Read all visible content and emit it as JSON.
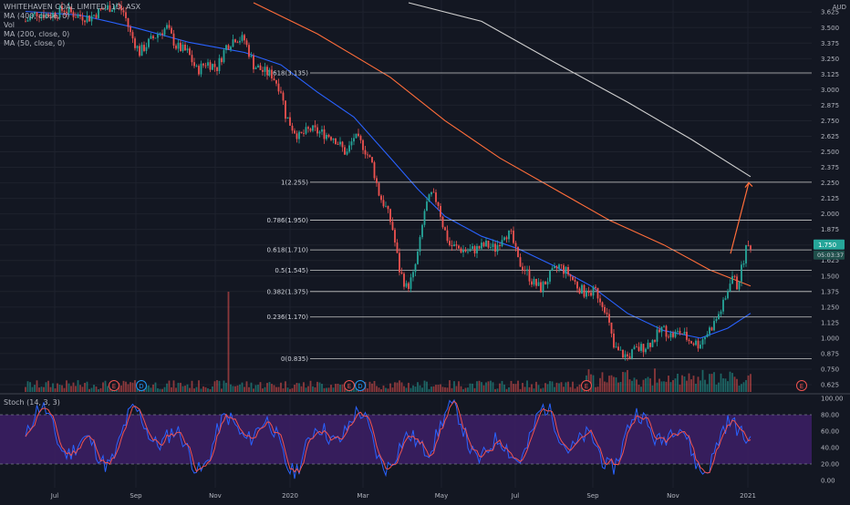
{
  "chart_data": {
    "type": "candlestick",
    "symbol_title": "WHITEHAVEN COAL LIMITED, 1D, ASX",
    "currency": "AUD",
    "indicators": [
      "MA (400, close, 0)",
      "Vol",
      "MA (200, close, 0)",
      "MA (50, close, 0)"
    ],
    "x_ticks": [
      "Jul",
      "Sep",
      "Nov",
      "2020",
      "Mar",
      "May",
      "Jul",
      "Sep",
      "Nov",
      "2021"
    ],
    "y_ticks": [
      "3.625",
      "3.500",
      "3.375",
      "3.250",
      "3.125",
      "3.000",
      "2.875",
      "2.750",
      "2.625",
      "2.500",
      "2.375",
      "2.250",
      "2.125",
      "2.000",
      "1.875",
      "1.750",
      "1.625",
      "1.500",
      "1.375",
      "1.250",
      "1.125",
      "1.000",
      "0.875",
      "0.750",
      "0.625"
    ],
    "ylim": [
      0.625,
      3.7
    ],
    "fib_levels": [
      {
        "label": "1.618(3.135)",
        "value": 3.135
      },
      {
        "label": "1(2.255)",
        "value": 2.255
      },
      {
        "label": "0.786(1.950)",
        "value": 1.95
      },
      {
        "label": "0.618(1.710)",
        "value": 1.71
      },
      {
        "label": "0.5(1.545)",
        "value": 1.545
      },
      {
        "label": "0.382(1.375)",
        "value": 1.375
      },
      {
        "label": "0.236(1.170)",
        "value": 1.17
      },
      {
        "label": "0(0.835)",
        "value": 0.835
      }
    ],
    "price_path": [
      [
        0,
        3.55
      ],
      [
        12,
        3.62
      ],
      [
        25,
        3.6
      ],
      [
        35,
        3.62
      ],
      [
        42,
        3.65
      ],
      [
        55,
        3.6
      ],
      [
        70,
        3.58
      ],
      [
        85,
        3.65
      ],
      [
        100,
        3.68
      ],
      [
        108,
        3.62
      ],
      [
        115,
        3.45
      ],
      [
        125,
        3.3
      ],
      [
        135,
        3.38
      ],
      [
        145,
        3.45
      ],
      [
        155,
        3.5
      ],
      [
        165,
        3.35
      ],
      [
        178,
        3.3
      ],
      [
        188,
        3.15
      ],
      [
        198,
        3.22
      ],
      [
        210,
        3.18
      ],
      [
        220,
        3.35
      ],
      [
        230,
        3.42
      ],
      [
        240,
        3.4
      ],
      [
        250,
        3.2
      ],
      [
        260,
        3.15
      ],
      [
        270,
        3.12
      ],
      [
        280,
        3.0
      ],
      [
        285,
        2.8
      ],
      [
        292,
        2.7
      ],
      [
        300,
        2.62
      ],
      [
        312,
        2.68
      ],
      [
        325,
        2.65
      ],
      [
        338,
        2.62
      ],
      [
        345,
        2.55
      ],
      [
        352,
        2.48
      ],
      [
        360,
        2.62
      ],
      [
        370,
        2.55
      ],
      [
        380,
        2.4
      ],
      [
        388,
        2.15
      ],
      [
        395,
        2.05
      ],
      [
        402,
        1.9
      ],
      [
        410,
        1.55
      ],
      [
        418,
        1.4
      ],
      [
        425,
        1.5
      ],
      [
        432,
        1.75
      ],
      [
        438,
        2.05
      ],
      [
        445,
        2.15
      ],
      [
        452,
        2.1
      ],
      [
        458,
        1.9
      ],
      [
        465,
        1.75
      ],
      [
        475,
        1.72
      ],
      [
        485,
        1.7
      ],
      [
        495,
        1.72
      ],
      [
        505,
        1.75
      ],
      [
        515,
        1.72
      ],
      [
        525,
        1.85
      ],
      [
        533,
        1.82
      ],
      [
        540,
        1.62
      ],
      [
        548,
        1.55
      ],
      [
        556,
        1.45
      ],
      [
        565,
        1.4
      ],
      [
        575,
        1.5
      ],
      [
        585,
        1.58
      ],
      [
        595,
        1.52
      ],
      [
        605,
        1.42
      ],
      [
        615,
        1.35
      ],
      [
        625,
        1.38
      ],
      [
        635,
        1.25
      ],
      [
        640,
        1.1
      ],
      [
        645,
        0.92
      ],
      [
        652,
        0.88
      ],
      [
        660,
        0.85
      ],
      [
        668,
        0.9
      ],
      [
        678,
        0.93
      ],
      [
        688,
        0.98
      ],
      [
        698,
        1.08
      ],
      [
        708,
        1.02
      ],
      [
        718,
        1.05
      ],
      [
        728,
        0.98
      ],
      [
        738,
        0.95
      ],
      [
        748,
        1.05
      ],
      [
        755,
        1.12
      ],
      [
        762,
        1.22
      ],
      [
        768,
        1.32
      ],
      [
        774,
        1.52
      ],
      [
        780,
        1.42
      ],
      [
        786,
        1.58
      ],
      [
        790,
        1.72
      ],
      [
        795,
        1.75
      ]
    ],
    "ma50": [
      [
        0,
        3.63
      ],
      [
        60,
        3.6
      ],
      [
        120,
        3.5
      ],
      [
        180,
        3.38
      ],
      [
        240,
        3.3
      ],
      [
        280,
        3.2
      ],
      [
        320,
        2.98
      ],
      [
        360,
        2.78
      ],
      [
        400,
        2.45
      ],
      [
        430,
        2.2
      ],
      [
        460,
        1.98
      ],
      [
        500,
        1.82
      ],
      [
        540,
        1.72
      ],
      [
        580,
        1.58
      ],
      [
        620,
        1.42
      ],
      [
        660,
        1.2
      ],
      [
        700,
        1.06
      ],
      [
        740,
        1.0
      ],
      [
        770,
        1.08
      ],
      [
        795,
        1.2
      ]
    ],
    "ma200": [
      [
        250,
        3.7
      ],
      [
        320,
        3.45
      ],
      [
        400,
        3.1
      ],
      [
        460,
        2.75
      ],
      [
        520,
        2.45
      ],
      [
        580,
        2.2
      ],
      [
        640,
        1.95
      ],
      [
        700,
        1.75
      ],
      [
        750,
        1.55
      ],
      [
        795,
        1.42
      ]
    ],
    "ma400": [
      [
        420,
        3.7
      ],
      [
        500,
        3.55
      ],
      [
        580,
        3.22
      ],
      [
        660,
        2.9
      ],
      [
        730,
        2.6
      ],
      [
        795,
        2.3
      ]
    ],
    "projection": {
      "from": [
        800,
        1.68
      ],
      "to": [
        820,
        2.25
      ]
    },
    "last_price_label": "1.750",
    "countdown_label": "05:03:37",
    "earnings_markers": [
      {
        "x": 125,
        "label": "E"
      },
      {
        "x": 383,
        "label": "E"
      },
      {
        "x": 643,
        "label": "E"
      },
      {
        "x": 879,
        "label": "E"
      }
    ],
    "dividend_markers": [
      {
        "x": 155,
        "label": "D"
      },
      {
        "x": 395,
        "label": "D"
      }
    ],
    "stochastic": {
      "title": "Stoch (14, 3, 3)",
      "y_ticks": [
        "100.00",
        "80.00",
        "60.00",
        "40.00",
        "20.00",
        "0.00"
      ],
      "ylim": [
        0,
        100
      ],
      "band": [
        20,
        80
      ]
    },
    "colors": {
      "up": "#26a69a",
      "down": "#ef5350",
      "ma50": "#2962ff",
      "ma200": "#ff6d3a",
      "ma400": "#cfcfcf",
      "fib": "#c8c8c8",
      "stoch_k": "#2962ff",
      "stoch_d": "#ef5350",
      "band_fill": "#3d1f66",
      "price_box": "#26a69a"
    }
  }
}
